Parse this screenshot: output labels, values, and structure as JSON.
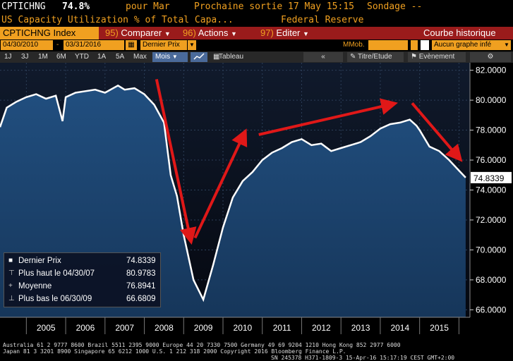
{
  "header": {
    "ticker": "CPTICHNG",
    "value": "74.8%",
    "period": "pour Mar",
    "next_release": "Prochaine sortie 17 May 15:15",
    "survey": "Sondage --",
    "description": "US Capacity Utilization % of Total Capa...",
    "source": "Federal Reserve"
  },
  "toolbar": {
    "index_label": "CPTICHNG Index",
    "menu1_num": "95)",
    "menu1": "Comparer",
    "menu2_num": "96)",
    "menu2": "Actions",
    "menu3_num": "97)",
    "menu3": "Editer",
    "right_label": "Courbe historique"
  },
  "options": {
    "start_date": "04/30/2010",
    "dash": "-",
    "end_date": "03/31/2016",
    "price_select": "Dernier Prix",
    "mmob": "MMob.",
    "graph_select": "Aucun graphe infé"
  },
  "ranges": {
    "items": [
      "1J",
      "3J",
      "1M",
      "6M",
      "YTD",
      "1A",
      "5A",
      "Max"
    ],
    "period": "Mois",
    "table": "Tableau",
    "nav_left": "«",
    "title_etude": "Titre/Etude",
    "event": "Evènement"
  },
  "legend": {
    "rows": [
      {
        "label": "Dernier Prix",
        "value": "74.8339"
      },
      {
        "label": "Plus haut le 04/30/07",
        "value": "80.9783"
      },
      {
        "label": "Moyenne",
        "value": "76.8941"
      },
      {
        "label": "Plus bas le 06/30/09",
        "value": "66.6809"
      }
    ]
  },
  "footer": {
    "line1": "Australia 61 2 9777 8600 Brazil 5511 2395 9000 Europe 44 20 7330 7500 Germany 49 69 9204 1210 Hong Kong 852 2977 6000",
    "line2": "Japan 81 3 3201 8900         Singapore 65 6212 1000         U.S. 1 212 318 2000         Copyright 2016 Bloomberg Finance L.P.",
    "line3": "SN 245378 H371-1809-3 15-Apr-16 15:17:19 CEST GMT+2:00"
  },
  "colors": {
    "accent": "#f0a020",
    "menu_bg": "#9a1b1b",
    "line": "#ffffff",
    "arrow": "#e01818",
    "plot_top": "#0e1a30",
    "plot_fill": "#1f4a7a"
  },
  "chart_data": {
    "type": "line",
    "title": "",
    "xlabel": "",
    "ylabel": "",
    "ylim": [
      65.5,
      82.5
    ],
    "yticks": [
      "82.0000",
      "80.0000",
      "78.0000",
      "76.0000",
      "74.0000",
      "72.0000",
      "70.0000",
      "68.0000",
      "66.0000"
    ],
    "xticks": [
      "2005",
      "2006",
      "2007",
      "2008",
      "2009",
      "2010",
      "2011",
      "2012",
      "2013",
      "2014",
      "2015"
    ],
    "last_value_label": "74.8339",
    "series": [
      {
        "name": "Dernier Prix",
        "x": [
          2004.33,
          2004.5,
          2004.75,
          2005.0,
          2005.25,
          2005.5,
          2005.75,
          2005.92,
          2006.0,
          2006.25,
          2006.5,
          2006.75,
          2007.0,
          2007.33,
          2007.5,
          2007.75,
          2008.0,
          2008.25,
          2008.5,
          2008.67,
          2008.75,
          2008.83,
          2009.0,
          2009.25,
          2009.5,
          2009.75,
          2010.0,
          2010.25,
          2010.5,
          2010.75,
          2011.0,
          2011.25,
          2011.5,
          2011.75,
          2012.0,
          2012.25,
          2012.5,
          2012.75,
          2013.0,
          2013.25,
          2013.5,
          2013.75,
          2014.0,
          2014.25,
          2014.5,
          2014.75,
          2014.92,
          2015.0,
          2015.25,
          2015.5,
          2015.75,
          2016.0,
          2016.17
        ],
        "values": [
          78.2,
          79.5,
          79.9,
          80.2,
          80.4,
          80.1,
          80.3,
          78.6,
          80.2,
          80.5,
          80.6,
          80.7,
          80.5,
          80.98,
          80.7,
          80.8,
          80.4,
          79.7,
          78.5,
          75.0,
          74.3,
          73.6,
          71.0,
          68.0,
          66.68,
          69.0,
          71.5,
          73.5,
          74.6,
          75.2,
          76.0,
          76.5,
          76.8,
          77.2,
          77.4,
          77.0,
          77.1,
          76.6,
          76.8,
          77.0,
          77.2,
          77.6,
          78.1,
          78.4,
          78.5,
          78.7,
          78.3,
          78.0,
          76.9,
          76.6,
          76.0,
          75.3,
          74.83
        ]
      }
    ],
    "annotations": {
      "arrows": [
        {
          "from": [
            2008.31,
            81.4
          ],
          "to": [
            2009.16,
            70.9
          ]
        },
        {
          "from": [
            2009.29,
            70.8
          ],
          "to": [
            2010.51,
            77.6
          ]
        },
        {
          "from": [
            2010.91,
            77.7
          ],
          "to": [
            2014.24,
            79.7
          ]
        },
        {
          "from": [
            2014.81,
            79.8
          ],
          "to": [
            2015.95,
            76.3
          ]
        }
      ]
    }
  }
}
